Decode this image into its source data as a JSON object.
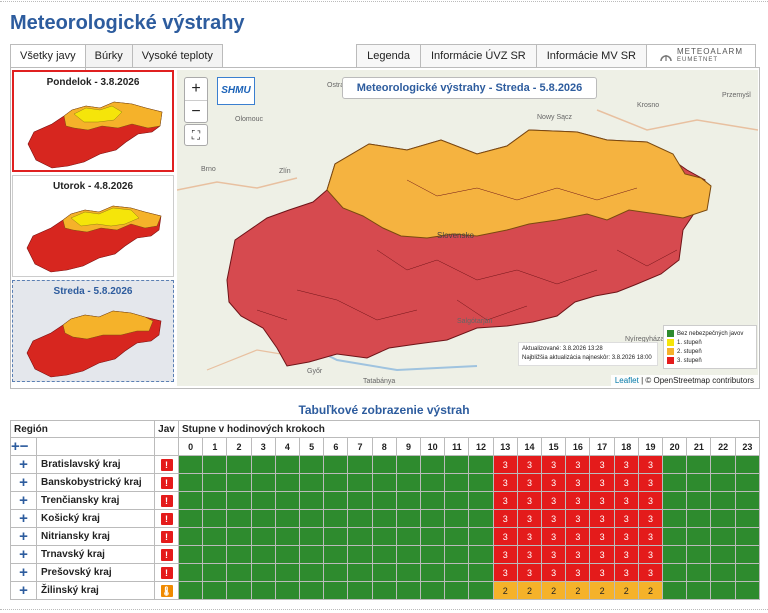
{
  "page": {
    "title": "Meteorologické výstrahy"
  },
  "tabs": [
    {
      "label": "Všetky javy",
      "active": true
    },
    {
      "label": "Búrky",
      "active": false
    },
    {
      "label": "Vysoké teploty",
      "active": false
    }
  ],
  "right_tabs": [
    {
      "label": "Legenda"
    },
    {
      "label": "Informácie ÚVZ SR"
    },
    {
      "label": "Informácie MV SR"
    }
  ],
  "meteoalarm": {
    "name": "METEOALARM",
    "sub": "EUMETNET"
  },
  "days": [
    {
      "label": "Pondelok - 3.8.2026",
      "state": "selected"
    },
    {
      "label": "Utorok - 4.8.2026",
      "state": "normal"
    },
    {
      "label": "Streda - 5.8.2026",
      "state": "current"
    }
  ],
  "map": {
    "title": "Meteorologické výstrahy - Streda - 5.8.2026",
    "logo": "SHMU",
    "zoom_in": "+",
    "zoom_out": "−",
    "fullscreen_icon": "fullscreen-icon",
    "updated": "Aktualizované: 3.8.2026 13:28",
    "next_update": "Najbližšia aktualizácia najneskôr: 3.8.2026 18:00",
    "legend": [
      {
        "label": "Bez nebezpečných javov",
        "color": "#2e8b2e"
      },
      {
        "label": "1. stupeň",
        "color": "#f5e50a"
      },
      {
        "label": "2. stupeň",
        "color": "#f5b22a"
      },
      {
        "label": "3. stupeň",
        "color": "#e41b1b"
      }
    ],
    "attribution_leaflet": "Leaflet",
    "attribution_rest": " | © OpenStreetmap contributors",
    "places": [
      {
        "name": "Ostrava"
      },
      {
        "name": "Olomouc"
      },
      {
        "name": "Nowy Sącz"
      },
      {
        "name": "Krosno"
      },
      {
        "name": "Przemyśl"
      },
      {
        "name": "Brno"
      },
      {
        "name": "Zlín"
      },
      {
        "name": "Slovensko"
      },
      {
        "name": "Salgótarján"
      },
      {
        "name": "Nyíregyháza"
      },
      {
        "name": "Győr"
      },
      {
        "name": "Tatabánya"
      }
    ]
  },
  "table": {
    "title": "Tabuľkové zobrazenie výstrah",
    "col_region": "Región",
    "col_jav": "Jav",
    "col_steps": "Stupne v hodinových krokoch",
    "expand_all": "+",
    "collapse_all": "−",
    "hours": [
      "0",
      "1",
      "2",
      "3",
      "4",
      "5",
      "6",
      "7",
      "8",
      "9",
      "10",
      "11",
      "12",
      "13",
      "14",
      "15",
      "16",
      "17",
      "18",
      "19",
      "20",
      "21",
      "22",
      "23"
    ],
    "rows": [
      {
        "region": "Bratislavský kraj",
        "icon": "!",
        "icon_color": "#e41b1b",
        "levels": [
          0,
          0,
          0,
          0,
          0,
          0,
          0,
          0,
          0,
          0,
          0,
          0,
          0,
          3,
          3,
          3,
          3,
          3,
          3,
          3,
          0,
          0,
          0,
          0
        ]
      },
      {
        "region": "Banskobystrický kraj",
        "icon": "!",
        "icon_color": "#e41b1b",
        "levels": [
          0,
          0,
          0,
          0,
          0,
          0,
          0,
          0,
          0,
          0,
          0,
          0,
          0,
          3,
          3,
          3,
          3,
          3,
          3,
          3,
          0,
          0,
          0,
          0
        ]
      },
      {
        "region": "Trenčiansky kraj",
        "icon": "!",
        "icon_color": "#e41b1b",
        "levels": [
          0,
          0,
          0,
          0,
          0,
          0,
          0,
          0,
          0,
          0,
          0,
          0,
          0,
          3,
          3,
          3,
          3,
          3,
          3,
          3,
          0,
          0,
          0,
          0
        ]
      },
      {
        "region": "Košický kraj",
        "icon": "!",
        "icon_color": "#e41b1b",
        "levels": [
          0,
          0,
          0,
          0,
          0,
          0,
          0,
          0,
          0,
          0,
          0,
          0,
          0,
          3,
          3,
          3,
          3,
          3,
          3,
          3,
          0,
          0,
          0,
          0
        ]
      },
      {
        "region": "Nitriansky kraj",
        "icon": "!",
        "icon_color": "#e41b1b",
        "levels": [
          0,
          0,
          0,
          0,
          0,
          0,
          0,
          0,
          0,
          0,
          0,
          0,
          0,
          3,
          3,
          3,
          3,
          3,
          3,
          3,
          0,
          0,
          0,
          0
        ]
      },
      {
        "region": "Trnavský kraj",
        "icon": "!",
        "icon_color": "#e41b1b",
        "levels": [
          0,
          0,
          0,
          0,
          0,
          0,
          0,
          0,
          0,
          0,
          0,
          0,
          0,
          3,
          3,
          3,
          3,
          3,
          3,
          3,
          0,
          0,
          0,
          0
        ]
      },
      {
        "region": "Prešovský kraj",
        "icon": "!",
        "icon_color": "#e41b1b",
        "levels": [
          0,
          0,
          0,
          0,
          0,
          0,
          0,
          0,
          0,
          0,
          0,
          0,
          0,
          3,
          3,
          3,
          3,
          3,
          3,
          3,
          0,
          0,
          0,
          0
        ]
      },
      {
        "region": "Žilinský kraj",
        "icon": "🌡",
        "icon_color": "#f08a00",
        "levels": [
          0,
          0,
          0,
          0,
          0,
          0,
          0,
          0,
          0,
          0,
          0,
          0,
          0,
          2,
          2,
          2,
          2,
          2,
          2,
          2,
          0,
          0,
          0,
          0
        ]
      }
    ]
  }
}
